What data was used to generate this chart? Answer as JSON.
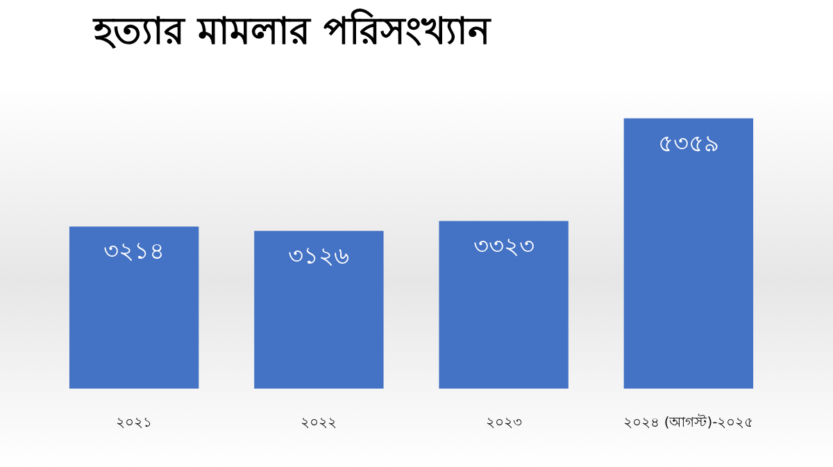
{
  "chart_data": {
    "type": "bar",
    "title": "হত্যার মামলার পরিসংখ্যান",
    "categories": [
      "২০২১",
      "২০২২",
      "২০২৩",
      "২০২৪ (আগস্ট)-২০২৫"
    ],
    "values": [
      3214,
      3126,
      3323,
      5359
    ],
    "value_labels": [
      "৩২১৪",
      "৩১২৬",
      "৩৩২৩",
      "৫৩৫৯"
    ],
    "color": "#4472c4"
  }
}
